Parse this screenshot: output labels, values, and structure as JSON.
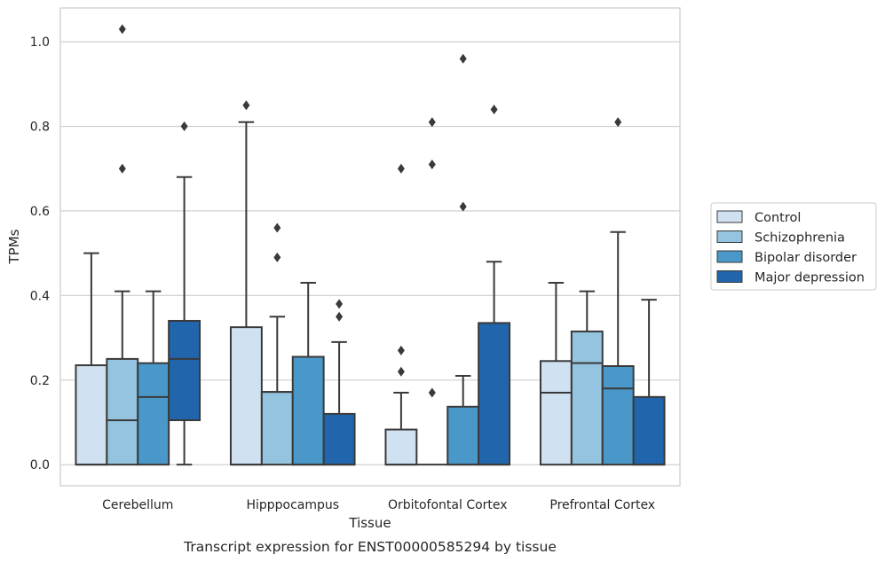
{
  "caption": "Transcript expression for ENST00000585294 by tissue",
  "chart_data": {
    "type": "boxplot",
    "xlabel": "Tissue",
    "ylabel": "TPMs",
    "ylim": [
      -0.05,
      1.08
    ],
    "yticks": [
      "0.0",
      "0.2",
      "0.4",
      "0.6",
      "0.8",
      "1.0"
    ],
    "grid": "horizontal",
    "legend_position": "right",
    "categories": [
      "Cerebellum",
      "Hipppocampus",
      "Orbitofontal Cortex",
      "Prefrontal Cortex"
    ],
    "series": [
      {
        "name": "Control",
        "color": "#d0e1f2",
        "boxes": [
          {
            "whisker_low": 0,
            "q1": 0,
            "median": 0,
            "q3": 0.235,
            "whisker_high": 0.5,
            "outliers": []
          },
          {
            "whisker_low": 0,
            "q1": 0,
            "median": 0,
            "q3": 0.325,
            "whisker_high": 0.81,
            "outliers": [
              0.85
            ]
          },
          {
            "whisker_low": 0,
            "q1": 0,
            "median": 0,
            "q3": 0.083,
            "whisker_high": 0.17,
            "outliers": [
              0.22,
              0.27,
              0.7
            ]
          },
          {
            "whisker_low": 0,
            "q1": 0,
            "median": 0.17,
            "q3": 0.245,
            "whisker_high": 0.43,
            "outliers": []
          }
        ]
      },
      {
        "name": "Schizophrenia",
        "color": "#94c4df",
        "boxes": [
          {
            "whisker_low": 0,
            "q1": 0,
            "median": 0.105,
            "q3": 0.25,
            "whisker_high": 0.41,
            "outliers": [
              0.7,
              1.03
            ]
          },
          {
            "whisker_low": 0,
            "q1": 0,
            "median": 0.172,
            "q3": 0.172,
            "whisker_high": 0.35,
            "outliers": [
              0.49,
              0.56
            ]
          },
          {
            "whisker_low": 0,
            "q1": 0,
            "median": 0,
            "q3": 0,
            "whisker_high": 0,
            "outliers": [
              0.17,
              0.71,
              0.81
            ]
          },
          {
            "whisker_low": 0,
            "q1": 0,
            "median": 0.24,
            "q3": 0.315,
            "whisker_high": 0.41,
            "outliers": []
          }
        ]
      },
      {
        "name": "Bipolar disorder",
        "color": "#4a98c9",
        "boxes": [
          {
            "whisker_low": 0,
            "q1": 0,
            "median": 0.16,
            "q3": 0.24,
            "whisker_high": 0.41,
            "outliers": []
          },
          {
            "whisker_low": 0,
            "q1": 0,
            "median": 0,
            "q3": 0.255,
            "whisker_high": 0.43,
            "outliers": []
          },
          {
            "whisker_low": 0,
            "q1": 0,
            "median": 0,
            "q3": 0.137,
            "whisker_high": 0.21,
            "outliers": [
              0.61,
              0.96
            ]
          },
          {
            "whisker_low": 0,
            "q1": 0,
            "median": 0.18,
            "q3": 0.233,
            "whisker_high": 0.55,
            "outliers": [
              0.81
            ]
          }
        ]
      },
      {
        "name": "Major depression",
        "color": "#2166ac",
        "boxes": [
          {
            "whisker_low": 0,
            "q1": 0.105,
            "median": 0.25,
            "q3": 0.34,
            "whisker_high": 0.68,
            "outliers": [
              0.8
            ]
          },
          {
            "whisker_low": 0,
            "q1": 0,
            "median": 0,
            "q3": 0.12,
            "whisker_high": 0.29,
            "outliers": [
              0.35,
              0.38
            ]
          },
          {
            "whisker_low": 0,
            "q1": 0,
            "median": 0,
            "q3": 0.335,
            "whisker_high": 0.48,
            "outliers": [
              0.84
            ]
          },
          {
            "whisker_low": 0,
            "q1": 0,
            "median": 0,
            "q3": 0.16,
            "whisker_high": 0.39,
            "outliers": []
          }
        ]
      }
    ]
  }
}
